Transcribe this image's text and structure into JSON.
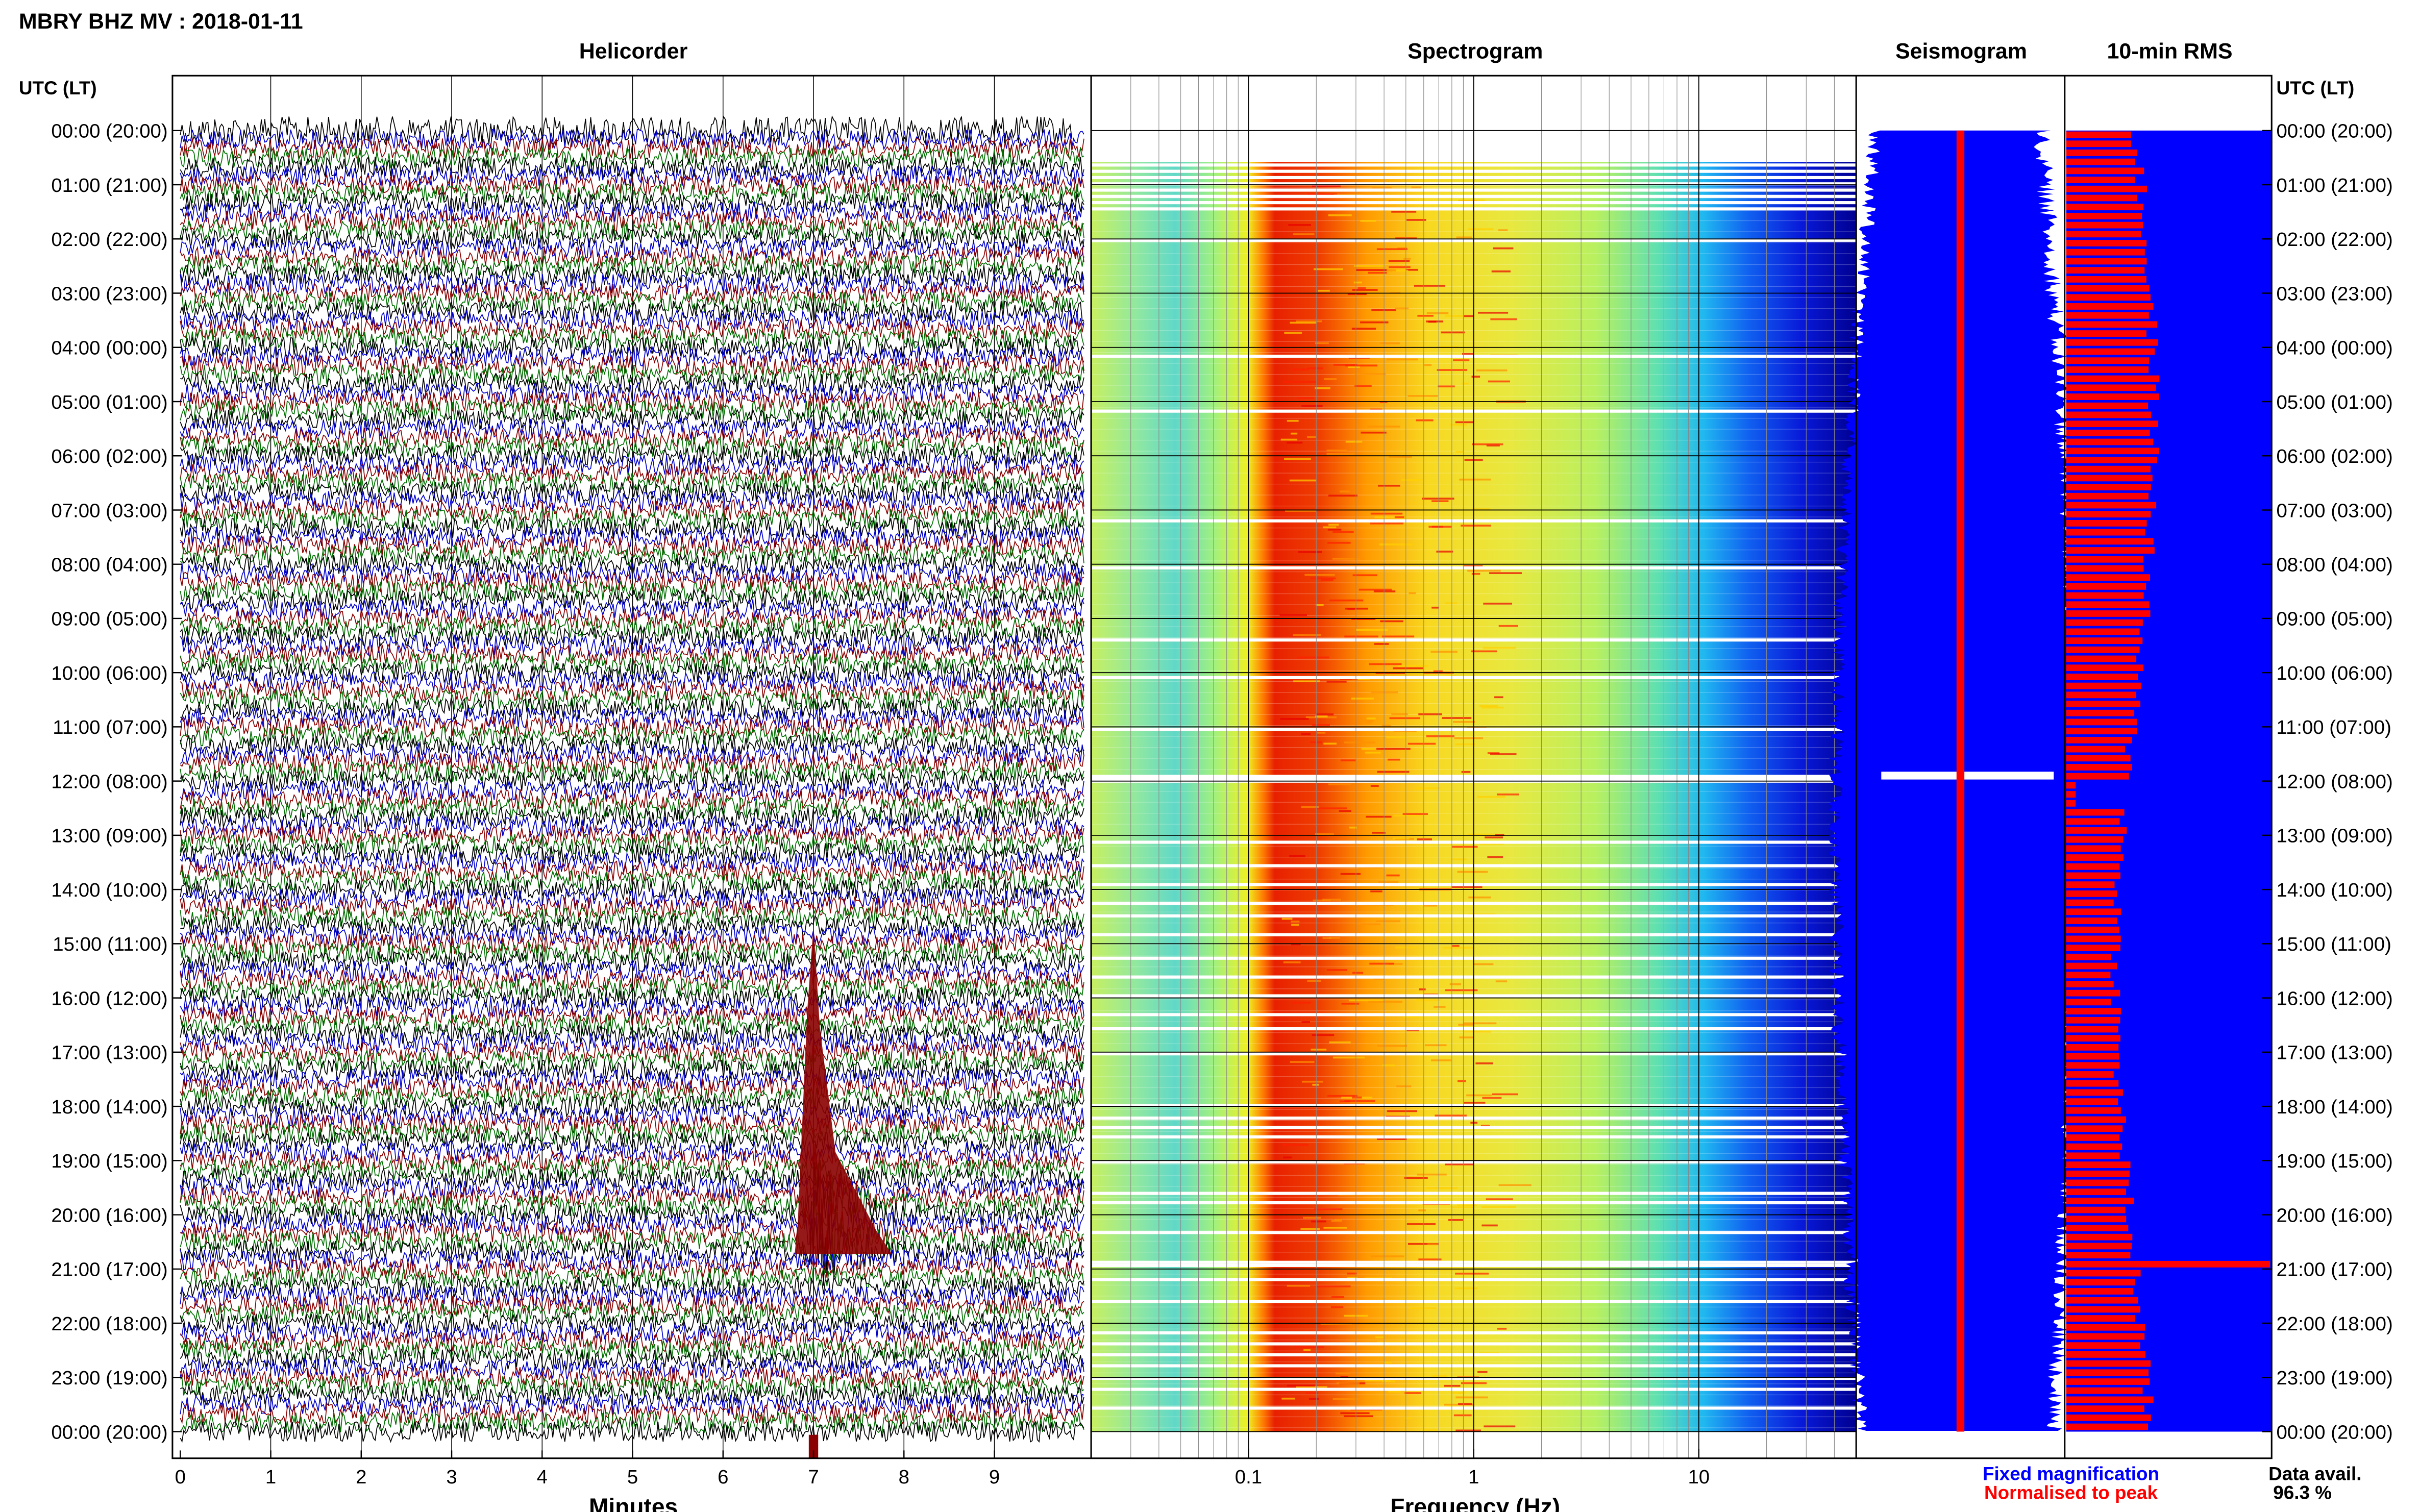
{
  "figure": {
    "title": "MBRY BHZ MV : 2018-01-11",
    "left_axis_title": "UTC (LT)",
    "right_axis_title": "UTC (LT)",
    "hour_labels": [
      "00:00 (20:00)",
      "01:00 (21:00)",
      "02:00 (22:00)",
      "03:00 (23:00)",
      "04:00 (00:00)",
      "05:00 (01:00)",
      "06:00 (02:00)",
      "07:00 (03:00)",
      "08:00 (04:00)",
      "09:00 (05:00)",
      "10:00 (06:00)",
      "11:00 (07:00)",
      "12:00 (08:00)",
      "13:00 (09:00)",
      "14:00 (10:00)",
      "15:00 (11:00)",
      "16:00 (12:00)",
      "17:00 (13:00)",
      "18:00 (14:00)",
      "19:00 (15:00)",
      "20:00 (16:00)",
      "21:00 (17:00)",
      "22:00 (18:00)",
      "23:00 (19:00)",
      "00:00 (20:00)"
    ],
    "legend": {
      "fixed": "Fixed magnification",
      "normalised": "Normalised to peak"
    },
    "data_avail_label": "Data avail.",
    "data_avail_value": "96.3 %",
    "colors": {
      "trace_black": "#000000",
      "trace_blue": "#0000cc",
      "trace_red": "#8b0000",
      "trace_green": "#007000",
      "fixed_blue": "#0000ff",
      "peak_red": "#ff0000"
    }
  },
  "chart_data": [
    {
      "type": "line",
      "title": "Helicorder",
      "xlabel": "Minutes",
      "ylabel": "UTC (LT)",
      "xlim": [
        0,
        10
      ],
      "xticks": [
        0,
        1,
        2,
        3,
        4,
        5,
        6,
        7,
        8,
        9
      ],
      "rows_per_hour": 6,
      "trace_colors_cycle": [
        "black",
        "blue",
        "red",
        "green"
      ],
      "event": {
        "utc": "20:00",
        "minute": 7.0,
        "note": "large signal trace"
      },
      "grid": true
    },
    {
      "type": "heatmap",
      "title": "Spectrogram",
      "xlabel": "Frequency (Hz)",
      "xscale": "log",
      "xlim": [
        0.02,
        50
      ],
      "xticks": [
        0.1,
        1,
        10
      ],
      "peak_band_hz": [
        0.2,
        0.5
      ],
      "colormap": "jet"
    },
    {
      "type": "area",
      "title": "Seismogram",
      "series": [
        {
          "name": "Fixed magnification",
          "color": "#0000ff"
        },
        {
          "name": "Normalised to peak",
          "color": "#ff0000"
        }
      ]
    },
    {
      "type": "bar",
      "title": "10-min RMS",
      "orientation": "horizontal",
      "bins_per_hour": 6,
      "peak_utc": "21:00",
      "series": [
        {
          "name": "Fixed magnification",
          "color": "#0000ff"
        },
        {
          "name": "Normalised to peak",
          "color": "#ff0000"
        }
      ]
    }
  ]
}
